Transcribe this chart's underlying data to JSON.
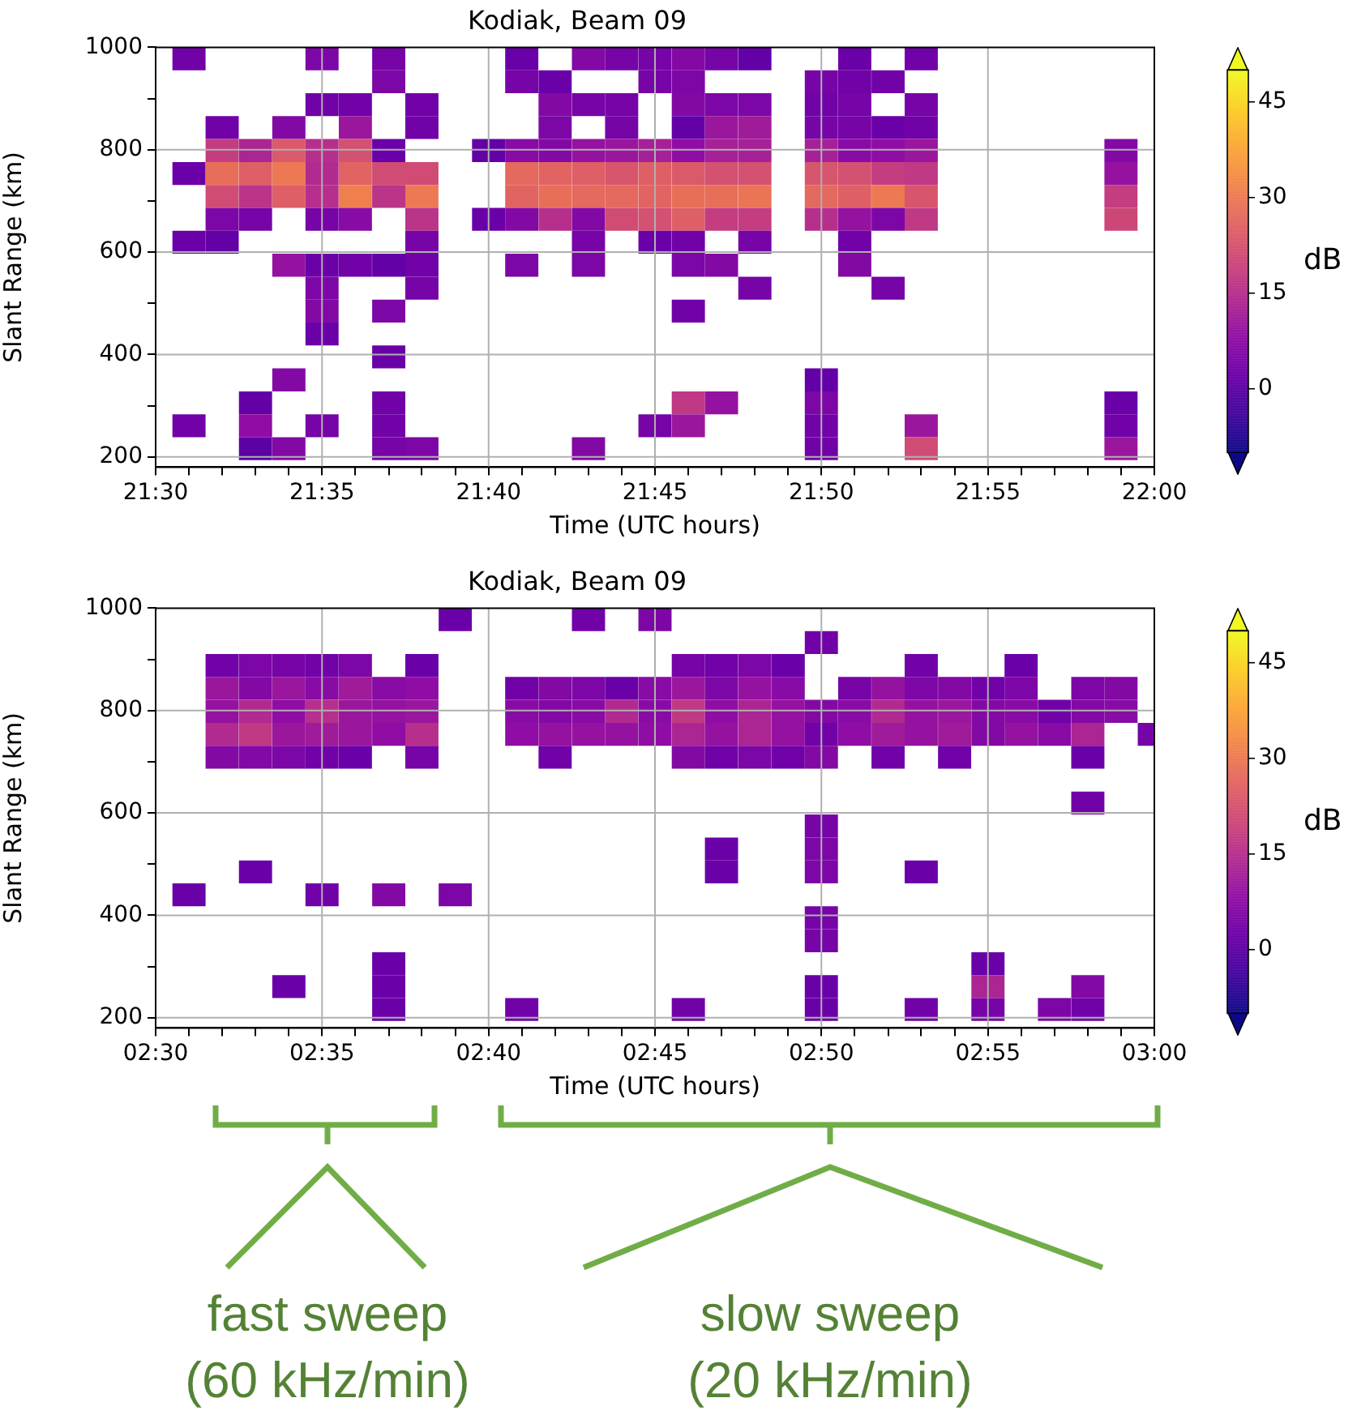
{
  "chart_data": [
    {
      "type": "heatmap",
      "title": "Kodiak, Beam 09",
      "xlabel": "Time (UTC hours)",
      "ylabel": "Slant Range (km)",
      "clabel": "dB",
      "clim": [
        -10,
        50
      ],
      "cticks": [
        0,
        15,
        30,
        45
      ],
      "grid": true,
      "xlim": [
        21.5,
        22
      ],
      "ylim": [
        180,
        1000
      ],
      "xticks": [
        {
          "value": 21.5,
          "label": "21:30"
        },
        {
          "value": 21.5167,
          "label": null
        },
        {
          "value": 21.5333,
          "label": null
        },
        {
          "value": 21.55,
          "label": null
        },
        {
          "value": 21.5667,
          "label": null
        },
        {
          "value": 21.5833,
          "label": "21:35"
        },
        {
          "value": 21.6,
          "label": null
        },
        {
          "value": 21.6167,
          "label": null
        },
        {
          "value": 21.6333,
          "label": null
        },
        {
          "value": 21.65,
          "label": null
        },
        {
          "value": 21.6667,
          "label": "21:40"
        },
        {
          "value": 21.6833,
          "label": null
        },
        {
          "value": 21.7,
          "label": null
        },
        {
          "value": 21.7167,
          "label": null
        },
        {
          "value": 21.7333,
          "label": null
        },
        {
          "value": 21.75,
          "label": "21:45"
        },
        {
          "value": 21.7667,
          "label": null
        },
        {
          "value": 21.7833,
          "label": null
        },
        {
          "value": 21.8,
          "label": null
        },
        {
          "value": 21.8167,
          "label": null
        },
        {
          "value": 21.8333,
          "label": "21:50"
        },
        {
          "value": 21.85,
          "label": null
        },
        {
          "value": 21.8667,
          "label": null
        },
        {
          "value": 21.8833,
          "label": null
        },
        {
          "value": 21.9,
          "label": null
        },
        {
          "value": 21.9167,
          "label": "21:55"
        },
        {
          "value": 21.9333,
          "label": null
        },
        {
          "value": 21.95,
          "label": null
        },
        {
          "value": 21.9667,
          "label": null
        },
        {
          "value": 21.9833,
          "label": null
        },
        {
          "value": 22,
          "label": "22:00"
        }
      ],
      "yticks": [
        200,
        {
          "value": 300,
          "label": null
        },
        400,
        {
          "value": 500,
          "label": null
        },
        600,
        {
          "value": 700,
          "label": null
        },
        800,
        {
          "value": 900,
          "label": null
        },
        1000
      ],
      "x": [
        21.5,
        21.5167,
        21.5333,
        21.55,
        21.5667,
        21.5833,
        21.6,
        21.6167,
        21.6333,
        21.65,
        21.6667,
        21.6833,
        21.7,
        21.7167,
        21.7333,
        21.75,
        21.7667,
        21.7833,
        21.8,
        21.8167,
        21.8333,
        21.85,
        21.8667,
        21.8833,
        21.9,
        21.9667,
        21.9833,
        22
      ],
      "y": [
        977.6,
        932.8,
        888,
        843.2,
        798.4,
        753.6,
        708.8,
        664,
        619.2,
        574.4,
        529.6,
        484.8,
        440,
        395.2,
        350.4,
        305.6,
        260.8,
        216
      ],
      "cells": [
        [
          null,
          3,
          null,
          null,
          null,
          5,
          null,
          4,
          null,
          null,
          null,
          2,
          null,
          6,
          4,
          4,
          6,
          4,
          1,
          null,
          null,
          2,
          null,
          3,
          null,
          null,
          null,
          null
        ],
        [
          null,
          null,
          null,
          null,
          null,
          null,
          null,
          5,
          null,
          null,
          null,
          4,
          2,
          null,
          null,
          4,
          5,
          null,
          null,
          null,
          4,
          3,
          3,
          null,
          null,
          null,
          null,
          null
        ],
        [
          null,
          null,
          null,
          null,
          null,
          3,
          3,
          null,
          3,
          null,
          null,
          null,
          6,
          4,
          4,
          null,
          6,
          5,
          5,
          null,
          3,
          4,
          null,
          4,
          null,
          null,
          null,
          null
        ],
        [
          null,
          null,
          3,
          null,
          6,
          null,
          10,
          null,
          3,
          null,
          null,
          null,
          5,
          null,
          4,
          null,
          1,
          10,
          11,
          null,
          4,
          4,
          2,
          3,
          null,
          null,
          null,
          null
        ],
        [
          null,
          null,
          18,
          13,
          24,
          15,
          22,
          2,
          null,
          null,
          1,
          7,
          6,
          9,
          10,
          12,
          8,
          12,
          12,
          null,
          12,
          7,
          8,
          10,
          null,
          null,
          6,
          null
        ],
        [
          null,
          2,
          28,
          25,
          30,
          14,
          26,
          21,
          21,
          null,
          null,
          27,
          26,
          25,
          23,
          25,
          24,
          22,
          22,
          null,
          23,
          22,
          18,
          17,
          null,
          null,
          9,
          null
        ],
        [
          null,
          null,
          21,
          16,
          25,
          15,
          31,
          16,
          30,
          null,
          null,
          26,
          28,
          27,
          27,
          26,
          28,
          28,
          29,
          null,
          27,
          25,
          30,
          23,
          null,
          null,
          18,
          null
        ],
        [
          null,
          null,
          5,
          4,
          null,
          4,
          7,
          null,
          16,
          null,
          2,
          6,
          15,
          6,
          21,
          22,
          25,
          18,
          18,
          null,
          15,
          9,
          5,
          17,
          null,
          null,
          20,
          null
        ],
        [
          null,
          2,
          1,
          null,
          null,
          null,
          null,
          null,
          4,
          null,
          null,
          null,
          null,
          4,
          null,
          2,
          3,
          null,
          4,
          null,
          null,
          3,
          null,
          null,
          null,
          null,
          null,
          null
        ],
        [
          null,
          null,
          null,
          null,
          9,
          2,
          3,
          1,
          3,
          null,
          null,
          5,
          null,
          5,
          null,
          null,
          5,
          6,
          null,
          null,
          null,
          6,
          null,
          null,
          null,
          null,
          null,
          null
        ],
        [
          null,
          null,
          null,
          null,
          null,
          5,
          null,
          null,
          4,
          null,
          null,
          null,
          null,
          null,
          null,
          null,
          null,
          null,
          4,
          null,
          null,
          null,
          4,
          null,
          null,
          null,
          null,
          null
        ],
        [
          null,
          null,
          null,
          null,
          null,
          6,
          null,
          5,
          null,
          null,
          null,
          null,
          null,
          null,
          null,
          null,
          3,
          null,
          null,
          null,
          null,
          null,
          null,
          null,
          null,
          null,
          null,
          null
        ],
        [
          null,
          null,
          null,
          null,
          null,
          2,
          null,
          null,
          null,
          null,
          null,
          null,
          null,
          null,
          null,
          null,
          null,
          null,
          null,
          null,
          null,
          null,
          null,
          null,
          null,
          null,
          null,
          null
        ],
        [
          null,
          null,
          null,
          null,
          null,
          null,
          null,
          2,
          null,
          null,
          null,
          null,
          null,
          null,
          null,
          null,
          null,
          null,
          null,
          null,
          null,
          null,
          null,
          null,
          null,
          null,
          null,
          null
        ],
        [
          null,
          null,
          null,
          null,
          6,
          null,
          null,
          null,
          null,
          null,
          null,
          null,
          null,
          null,
          null,
          null,
          null,
          null,
          null,
          null,
          1,
          null,
          null,
          null,
          null,
          null,
          null,
          null
        ],
        [
          null,
          null,
          null,
          1,
          null,
          null,
          null,
          3,
          null,
          null,
          null,
          null,
          null,
          null,
          null,
          null,
          17,
          9,
          null,
          null,
          5,
          null,
          null,
          null,
          null,
          null,
          2,
          null
        ],
        [
          null,
          3,
          null,
          8,
          null,
          4,
          null,
          3,
          null,
          null,
          null,
          null,
          null,
          null,
          null,
          4,
          10,
          null,
          null,
          null,
          3,
          null,
          null,
          10,
          null,
          null,
          3,
          null
        ],
        [
          null,
          null,
          null,
          0,
          6,
          null,
          null,
          4,
          5,
          null,
          null,
          null,
          null,
          6,
          null,
          null,
          null,
          null,
          null,
          null,
          3,
          null,
          null,
          21,
          null,
          null,
          10,
          null
        ]
      ]
    },
    {
      "type": "heatmap",
      "title": "Kodiak, Beam 09",
      "xlabel": "Time (UTC hours)",
      "ylabel": "Slant Range (km)",
      "clabel": "dB",
      "clim": [
        -10,
        50
      ],
      "cticks": [
        0,
        15,
        30,
        45
      ],
      "grid": true,
      "xlim": [
        2.5,
        3
      ],
      "ylim": [
        180,
        1000
      ],
      "xticks": [
        {
          "value": 2.5,
          "label": "02:30"
        },
        {
          "value": 2.5167,
          "label": null
        },
        {
          "value": 2.5333,
          "label": null
        },
        {
          "value": 2.55,
          "label": null
        },
        {
          "value": 2.5667,
          "label": null
        },
        {
          "value": 2.5833,
          "label": "02:35"
        },
        {
          "value": 2.6,
          "label": null
        },
        {
          "value": 2.6167,
          "label": null
        },
        {
          "value": 2.6333,
          "label": null
        },
        {
          "value": 2.65,
          "label": null
        },
        {
          "value": 2.6667,
          "label": "02:40"
        },
        {
          "value": 2.6833,
          "label": null
        },
        {
          "value": 2.7,
          "label": null
        },
        {
          "value": 2.7167,
          "label": null
        },
        {
          "value": 2.7333,
          "label": null
        },
        {
          "value": 2.75,
          "label": "02:45"
        },
        {
          "value": 2.7667,
          "label": null
        },
        {
          "value": 2.7833,
          "label": null
        },
        {
          "value": 2.8,
          "label": null
        },
        {
          "value": 2.8167,
          "label": null
        },
        {
          "value": 2.8333,
          "label": "02:50"
        },
        {
          "value": 2.85,
          "label": null
        },
        {
          "value": 2.8667,
          "label": null
        },
        {
          "value": 2.8833,
          "label": null
        },
        {
          "value": 2.9,
          "label": null
        },
        {
          "value": 2.9167,
          "label": "02:55"
        },
        {
          "value": 2.9333,
          "label": null
        },
        {
          "value": 2.95,
          "label": null
        },
        {
          "value": 2.9667,
          "label": null
        },
        {
          "value": 2.9833,
          "label": null
        },
        {
          "value": 3,
          "label": "03:00"
        }
      ],
      "yticks": [
        200,
        {
          "value": 300,
          "label": null
        },
        400,
        {
          "value": 500,
          "label": null
        },
        600,
        {
          "value": 700,
          "label": null
        },
        800,
        {
          "value": 900,
          "label": null
        },
        1000
      ],
      "x": [
        2.5,
        2.5167,
        2.5333,
        2.55,
        2.5667,
        2.5833,
        2.6,
        2.6167,
        2.6333,
        2.65,
        2.6667,
        2.6833,
        2.7,
        2.7167,
        2.7333,
        2.75,
        2.7667,
        2.7833,
        2.8,
        2.8167,
        2.8333,
        2.85,
        2.8667,
        2.8833,
        2.9,
        2.9167,
        2.9333,
        2.95,
        2.9667,
        2.9833,
        3
      ],
      "y": [
        977.6,
        932.8,
        888,
        843.2,
        798.4,
        753.6,
        708.8,
        619.2,
        574.4,
        529.6,
        484.8,
        440,
        395.2,
        350.4,
        305.6,
        260.8,
        216
      ],
      "cells": [
        [
          null,
          null,
          null,
          null,
          null,
          null,
          null,
          null,
          null,
          2,
          null,
          null,
          null,
          3,
          null,
          5,
          null,
          null,
          null,
          null,
          null,
          null,
          null,
          null,
          null,
          null,
          null,
          null,
          null,
          null,
          null
        ],
        [
          null,
          null,
          null,
          null,
          null,
          null,
          null,
          null,
          null,
          null,
          null,
          null,
          null,
          null,
          null,
          null,
          null,
          null,
          null,
          null,
          3,
          null,
          null,
          null,
          null,
          null,
          null,
          null,
          null,
          null,
          null
        ],
        [
          null,
          null,
          3,
          5,
          4,
          3,
          5,
          null,
          2,
          null,
          null,
          null,
          null,
          null,
          null,
          null,
          4,
          3,
          5,
          2,
          null,
          null,
          null,
          3,
          null,
          null,
          2,
          null,
          null,
          null,
          null
        ],
        [
          null,
          null,
          10,
          6,
          10,
          7,
          11,
          7,
          8,
          null,
          null,
          3,
          6,
          5,
          2,
          7,
          10,
          5,
          9,
          7,
          null,
          4,
          9,
          5,
          6,
          3,
          5,
          null,
          5,
          6,
          null
        ],
        [
          null,
          null,
          9,
          14,
          8,
          15,
          10,
          9,
          10,
          null,
          null,
          7,
          6,
          7,
          14,
          7,
          17,
          8,
          13,
          9,
          6,
          7,
          14,
          9,
          10,
          6,
          7,
          3,
          6,
          7,
          null
        ],
        [
          null,
          null,
          14,
          17,
          10,
          11,
          10,
          8,
          15,
          null,
          null,
          8,
          9,
          9,
          9,
          8,
          13,
          9,
          13,
          9,
          3,
          8,
          11,
          9,
          11,
          6,
          9,
          7,
          13,
          null,
          4
        ],
        [
          null,
          null,
          6,
          6,
          5,
          3,
          2,
          null,
          4,
          null,
          null,
          null,
          3,
          null,
          null,
          null,
          6,
          3,
          5,
          3,
          6,
          null,
          3,
          null,
          3,
          null,
          null,
          null,
          2,
          null,
          null
        ],
        [
          null,
          null,
          null,
          null,
          null,
          null,
          null,
          null,
          null,
          null,
          null,
          null,
          null,
          null,
          null,
          null,
          null,
          null,
          null,
          null,
          null,
          null,
          null,
          null,
          null,
          null,
          null,
          null,
          3,
          null,
          null
        ],
        [
          null,
          null,
          null,
          null,
          null,
          null,
          null,
          null,
          null,
          null,
          null,
          null,
          null,
          null,
          null,
          null,
          null,
          null,
          null,
          null,
          4,
          null,
          null,
          null,
          null,
          null,
          null,
          null,
          null,
          null,
          null
        ],
        [
          null,
          null,
          null,
          null,
          null,
          null,
          null,
          null,
          null,
          null,
          null,
          null,
          null,
          null,
          null,
          null,
          null,
          2,
          null,
          null,
          5,
          null,
          null,
          null,
          null,
          null,
          null,
          null,
          null,
          null,
          null
        ],
        [
          null,
          null,
          null,
          2,
          null,
          null,
          null,
          null,
          null,
          null,
          null,
          null,
          null,
          null,
          null,
          null,
          null,
          2,
          null,
          null,
          5,
          null,
          null,
          2,
          null,
          null,
          null,
          null,
          null,
          null,
          null
        ],
        [
          null,
          2,
          null,
          null,
          null,
          3,
          null,
          6,
          null,
          5,
          null,
          null,
          null,
          null,
          null,
          null,
          null,
          null,
          null,
          null,
          null,
          null,
          null,
          null,
          null,
          null,
          null,
          null,
          null,
          null,
          null
        ],
        [
          null,
          null,
          null,
          null,
          null,
          null,
          null,
          null,
          null,
          null,
          null,
          null,
          null,
          null,
          null,
          null,
          null,
          null,
          null,
          null,
          4,
          null,
          null,
          null,
          null,
          null,
          null,
          null,
          null,
          null,
          null
        ],
        [
          null,
          null,
          null,
          null,
          null,
          null,
          null,
          null,
          null,
          null,
          null,
          null,
          null,
          null,
          null,
          null,
          null,
          null,
          null,
          null,
          4,
          null,
          null,
          null,
          null,
          null,
          null,
          null,
          null,
          null,
          null
        ],
        [
          null,
          null,
          null,
          null,
          null,
          null,
          null,
          2,
          null,
          null,
          null,
          null,
          null,
          null,
          null,
          null,
          null,
          null,
          null,
          null,
          null,
          null,
          null,
          null,
          null,
          2,
          null,
          null,
          null,
          null,
          null
        ],
        [
          null,
          null,
          null,
          null,
          2,
          null,
          null,
          2,
          null,
          null,
          null,
          null,
          null,
          null,
          null,
          null,
          null,
          null,
          null,
          null,
          2,
          null,
          null,
          null,
          null,
          13,
          null,
          null,
          6,
          null,
          null
        ],
        [
          null,
          null,
          null,
          null,
          null,
          null,
          null,
          2,
          null,
          null,
          null,
          3,
          null,
          null,
          null,
          null,
          3,
          null,
          null,
          null,
          2,
          null,
          null,
          3,
          null,
          4,
          null,
          5,
          3,
          null,
          null
        ]
      ],
      "annotations": [
        "fast sweep\n(60 kHz/min)",
        "slow sweep\n(20 kHz/min)"
      ]
    }
  ]
}
